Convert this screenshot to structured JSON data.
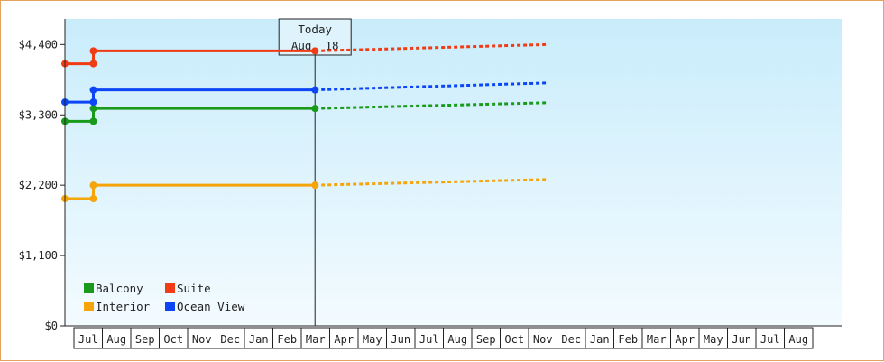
{
  "chart_data": {
    "type": "line",
    "ylim": [
      0,
      4800
    ],
    "yticks": [
      "$0",
      "$1,100",
      "$2,200",
      "$3,300",
      "$4,400"
    ],
    "ytick_values": [
      0,
      1100,
      2200,
      3300,
      4400
    ],
    "months": [
      "Jul",
      "Aug",
      "Sep",
      "Oct",
      "Nov",
      "Dec",
      "Jan",
      "Feb",
      "Mar",
      "Apr",
      "May",
      "Jun",
      "Jul",
      "Aug",
      "Sep",
      "Oct",
      "Nov",
      "Dec",
      "Jan",
      "Feb",
      "Mar",
      "Apr",
      "May",
      "Jun",
      "Jul",
      "Aug"
    ],
    "today": {
      "line1": "Today",
      "line2": "Aug. 18"
    },
    "legend": [
      {
        "name": "Balcony",
        "color": "#1a9a1a"
      },
      {
        "name": "Suite",
        "color": "#f03c14"
      },
      {
        "name": "Interior",
        "color": "#f5a50a"
      },
      {
        "name": "Ocean View",
        "color": "#0b45f5"
      }
    ],
    "series": [
      {
        "name": "Balcony",
        "color": "#1a9a1a",
        "history": [
          [
            0,
            3200
          ],
          [
            1.0,
            3200
          ],
          [
            1.0,
            3400
          ],
          [
            8.8,
            3400
          ]
        ],
        "forecast": [
          [
            8.8,
            3400
          ],
          [
            17,
            3490
          ]
        ]
      },
      {
        "name": "Suite",
        "color": "#f03c14",
        "history": [
          [
            0,
            4100
          ],
          [
            1.0,
            4100
          ],
          [
            1.0,
            4300
          ],
          [
            8.8,
            4300
          ]
        ],
        "forecast": [
          [
            8.8,
            4300
          ],
          [
            17,
            4400
          ]
        ]
      },
      {
        "name": "Ocean View",
        "color": "#0b45f5",
        "history": [
          [
            0,
            3500
          ],
          [
            1.0,
            3500
          ],
          [
            1.0,
            3690
          ],
          [
            8.8,
            3690
          ]
        ],
        "forecast": [
          [
            8.8,
            3690
          ],
          [
            17,
            3800
          ]
        ]
      },
      {
        "name": "Interior",
        "color": "#f5a50a",
        "history": [
          [
            0,
            1990
          ],
          [
            1.0,
            1990
          ],
          [
            1.0,
            2200
          ],
          [
            8.8,
            2200
          ]
        ],
        "forecast": [
          [
            8.8,
            2200
          ],
          [
            17,
            2290
          ]
        ]
      }
    ],
    "colors": {
      "plot_bg_top": "#c9ecfb",
      "plot_bg_bottom": "#f3fbff",
      "frame": "#e3a35c"
    }
  }
}
